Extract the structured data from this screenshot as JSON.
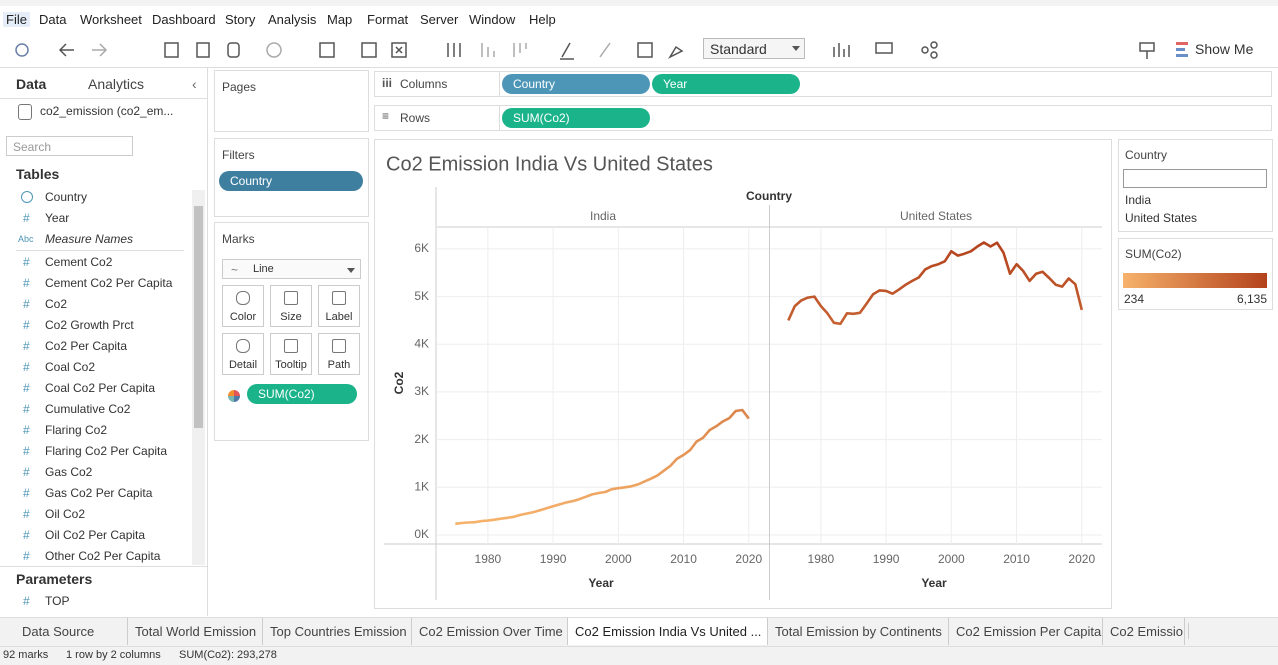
{
  "menu": [
    "File",
    "Data",
    "Worksheet",
    "Dashboard",
    "Story",
    "Analysis",
    "Map",
    "Format",
    "Server",
    "Window",
    "Help"
  ],
  "toolbar": {
    "fit": "Standard",
    "show_me": "Show Me"
  },
  "data_pane": {
    "tabs": [
      "Data",
      "Analytics"
    ],
    "source": "co2_emission (co2_em...",
    "search": "Search",
    "tables_heading": "Tables",
    "fields": [
      {
        "name": "Country"
      },
      {
        "icon": "#",
        "name": "Year"
      },
      {
        "icon": "Abc",
        "name": "Measure Names"
      },
      {
        "icon": "#",
        "name": "Cement Co2"
      },
      {
        "icon": "#",
        "name": "Cement Co2 Per Capita"
      },
      {
        "icon": "#",
        "name": "Co2"
      },
      {
        "icon": "#",
        "name": "Co2 Growth Prct"
      },
      {
        "icon": "#",
        "name": "Co2 Per Capita"
      },
      {
        "icon": "#",
        "name": "Coal Co2"
      },
      {
        "icon": "#",
        "name": "Coal Co2 Per Capita"
      },
      {
        "icon": "#",
        "name": "Cumulative Co2"
      },
      {
        "icon": "#",
        "name": "Flaring Co2"
      },
      {
        "icon": "#",
        "name": "Flaring Co2 Per Capita"
      },
      {
        "icon": "#",
        "name": "Gas Co2"
      },
      {
        "icon": "#",
        "name": "Gas Co2 Per Capita"
      },
      {
        "icon": "#",
        "name": "Oil Co2"
      },
      {
        "icon": "#",
        "name": "Oil Co2 Per Capita"
      },
      {
        "icon": "#",
        "name": "Other Co2 Per Capita"
      }
    ],
    "parameters_heading": "Parameters",
    "parameters": [
      {
        "icon": "#",
        "name": "TOP"
      }
    ]
  },
  "shelves": {
    "pages": "Pages",
    "filters": "Filters",
    "filter_pills": [
      "Country"
    ],
    "marks": "Marks",
    "mark_type": "Line",
    "mark_buttons": [
      "Color",
      "Size",
      "Label",
      "Detail",
      "Tooltip",
      "Path"
    ],
    "mark_pill": "SUM(Co2)",
    "columns": {
      "label": "Columns",
      "pills": [
        "Country",
        "Year"
      ]
    },
    "rows": {
      "label": "Rows",
      "pills": [
        "SUM(Co2)"
      ]
    }
  },
  "chart_data": {
    "type": "line",
    "title": "Co2 Emission India Vs United States",
    "column_header": "Country",
    "x_label": "Year",
    "y_label": "Co2",
    "x": [
      1975,
      1976,
      1977,
      1978,
      1979,
      1980,
      1981,
      1982,
      1983,
      1984,
      1985,
      1986,
      1987,
      1988,
      1989,
      1990,
      1991,
      1992,
      1993,
      1994,
      1995,
      1996,
      1997,
      1998,
      1999,
      2000,
      2001,
      2002,
      2003,
      2004,
      2005,
      2006,
      2007,
      2008,
      2009,
      2010,
      2011,
      2012,
      2013,
      2014,
      2015,
      2016,
      2017,
      2018,
      2019,
      2020
    ],
    "series": [
      {
        "name": "India",
        "values": [
          234,
          250,
          262,
          268,
          290,
          300,
          320,
          340,
          360,
          380,
          420,
          450,
          480,
          520,
          560,
          600,
          640,
          680,
          710,
          750,
          800,
          850,
          880,
          900,
          960,
          980,
          1000,
          1020,
          1060,
          1120,
          1180,
          1250,
          1350,
          1450,
          1600,
          1680,
          1780,
          1960,
          2040,
          2200,
          2280,
          2380,
          2450,
          2600,
          2620,
          2440
        ]
      },
      {
        "name": "United States",
        "values": [
          4500,
          4800,
          4920,
          4980,
          5000,
          4800,
          4650,
          4450,
          4430,
          4650,
          4640,
          4660,
          4850,
          5050,
          5130,
          5120,
          5060,
          5150,
          5250,
          5330,
          5400,
          5570,
          5640,
          5680,
          5740,
          5950,
          5860,
          5900,
          5950,
          6050,
          6135,
          6050,
          6130,
          5920,
          5480,
          5680,
          5540,
          5330,
          5480,
          5520,
          5390,
          5250,
          5210,
          5380,
          5260,
          4720
        ]
      }
    ],
    "xlim": [
      1972.2,
      2023.1
    ],
    "xticks": [
      1980,
      1990,
      2000,
      2010,
      2020
    ],
    "ylim": [
      -190,
      6460
    ],
    "yticks": [
      {
        "value": 0,
        "label": "0K"
      },
      {
        "value": 1000,
        "label": "1K"
      },
      {
        "value": 2000,
        "label": "2K"
      },
      {
        "value": 3000,
        "label": "3K"
      },
      {
        "value": 4000,
        "label": "4K"
      },
      {
        "value": 5000,
        "label": "5K"
      },
      {
        "value": 6000,
        "label": "6K"
      }
    ],
    "grid": true,
    "color_legend": {
      "title": "SUM(Co2)",
      "min": 234,
      "max": {
        "value": 6135,
        "label": "6,135"
      },
      "colors": [
        "#f6b26b",
        "#b3421c"
      ]
    },
    "country_legend": "Country"
  },
  "sheet_tabs": [
    "Data Source",
    "Total World Emission",
    "Top Countries Emission",
    "Co2 Emission Over Time",
    "Co2 Emission India Vs United ...",
    "Total Emission by Continents",
    "Co2 Emission Per Capita",
    "Co2 Emissio"
  ],
  "status": [
    "92 marks",
    "1 row by 2 columns",
    "SUM(Co2): 293,278"
  ]
}
